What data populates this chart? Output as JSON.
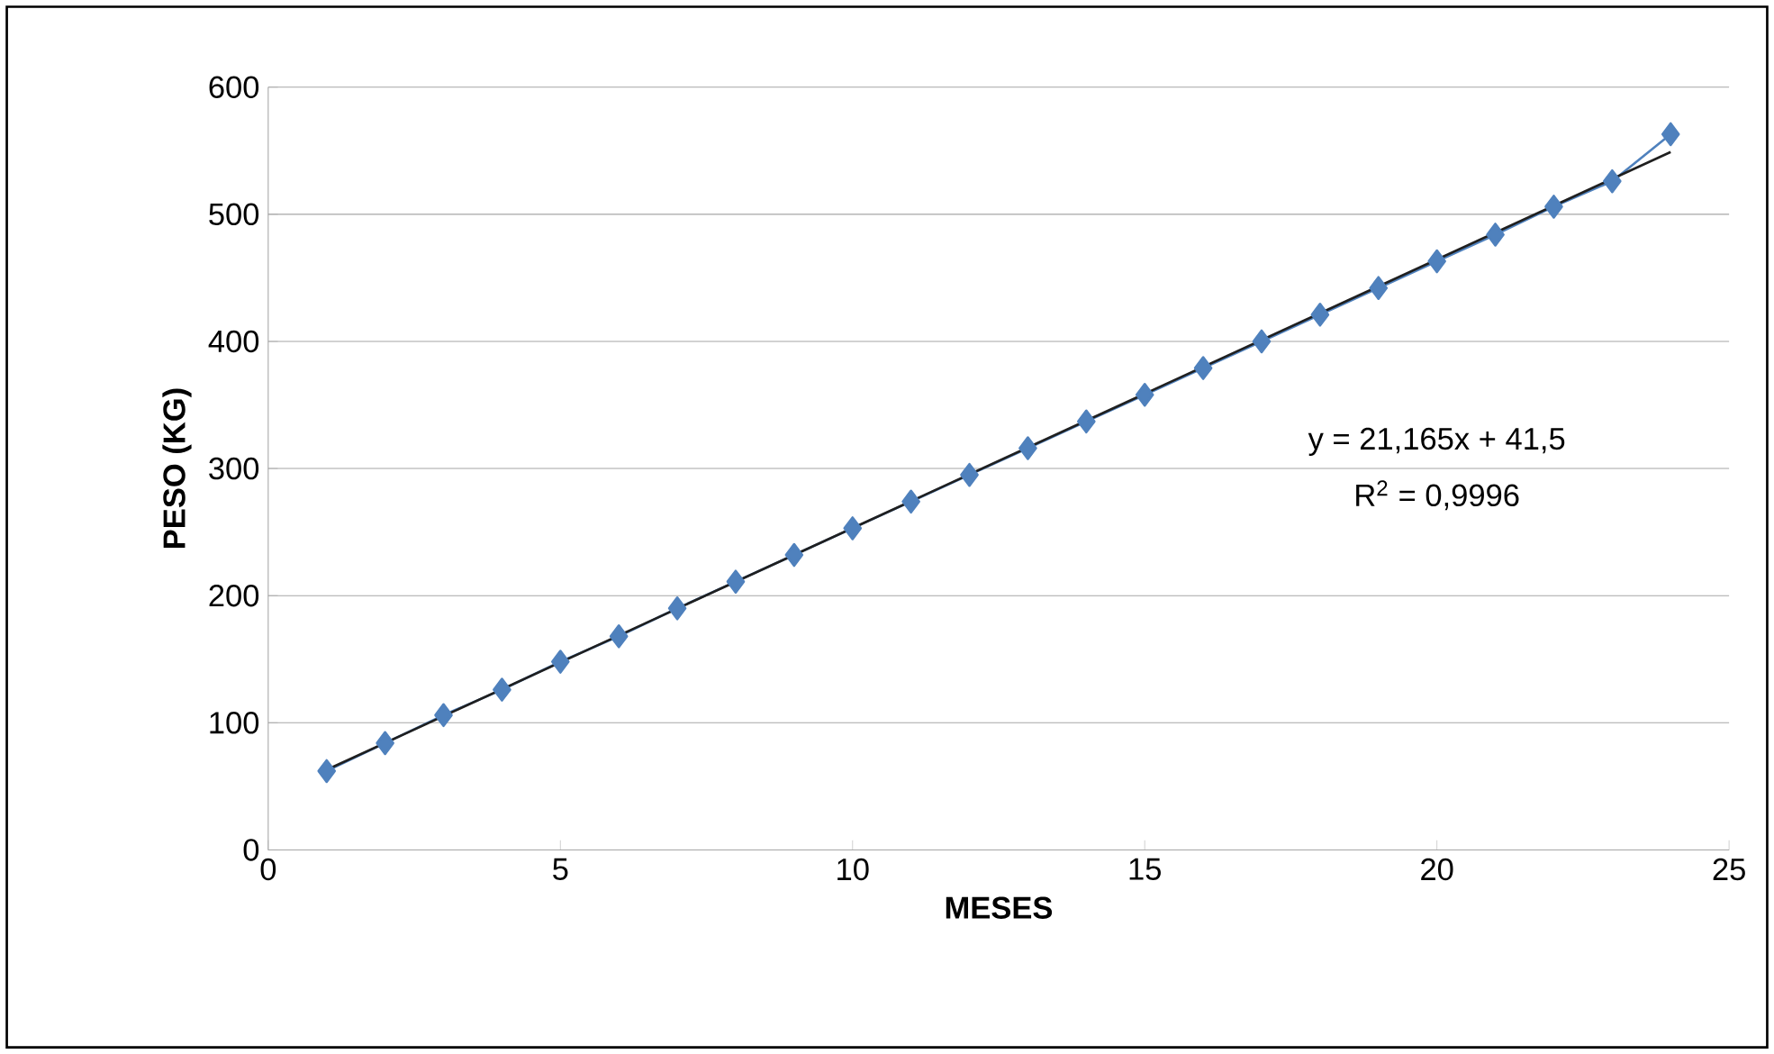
{
  "chart_data": {
    "type": "line",
    "xlabel": "MESES",
    "ylabel": "PESO (KG)",
    "xlim": [
      0,
      25
    ],
    "xticks": [
      0,
      5,
      10,
      15,
      20,
      25
    ],
    "ylim": [
      0,
      600
    ],
    "yticks": [
      0,
      100,
      200,
      300,
      400,
      500,
      600
    ],
    "grid": "y",
    "series": [
      {
        "color": "#4f81bd",
        "marker": "diamond",
        "x": [
          1,
          2,
          3,
          4,
          5,
          6,
          7,
          8,
          9,
          10,
          11,
          12,
          13,
          14,
          15,
          16,
          17,
          18,
          19,
          20,
          21,
          22,
          23,
          24
        ],
        "values": [
          62,
          84,
          106,
          126,
          148,
          168,
          190,
          211,
          232,
          253,
          274,
          295,
          316,
          337,
          358,
          379,
          400,
          421,
          442,
          463,
          484,
          506,
          526,
          563
        ]
      },
      {
        "color": "#1f1f1f",
        "marker": "none",
        "x": [
          1,
          24
        ],
        "values": [
          63,
          549
        ]
      }
    ],
    "annotations": [
      "y = 21,165x + 41,5",
      "R$^{2}$ = 0,9996"
    ]
  }
}
